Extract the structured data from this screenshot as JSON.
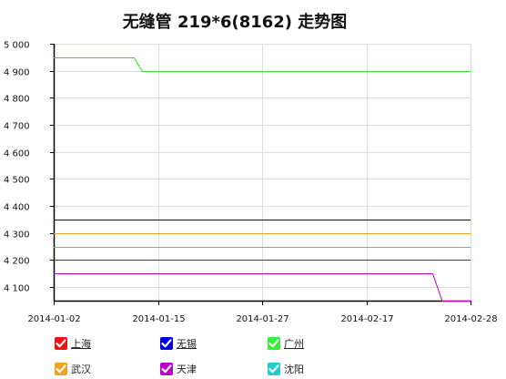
{
  "chart_data": {
    "type": "line",
    "title": "无缝管 219*6(8162) 走势图",
    "x_ticks": [
      "2014-01-02",
      "2014-01-15",
      "2014-01-27",
      "2014-02-17",
      "2014-02-28"
    ],
    "ylim": [
      4050,
      5000
    ],
    "y_ticks": [
      "5 000",
      "4 900",
      "4 800",
      "4 700",
      "4 600",
      "4 500",
      "4 400",
      "4 300",
      "4 200",
      "4 100"
    ],
    "y_tick_values": [
      5000,
      4900,
      4800,
      4700,
      4600,
      4500,
      4400,
      4300,
      4200,
      4100
    ],
    "grid": true,
    "series": [
      {
        "name": "上海",
        "color": "#dd0000",
        "checkbox_color": "#ee1111",
        "points": [
          [
            "2014-01-02",
            4200
          ],
          [
            "2014-02-28",
            4200
          ]
        ]
      },
      {
        "name": "无锡",
        "color": "#0000aa",
        "checkbox_color": "#0000dd",
        "points": [
          [
            "2014-01-02",
            4350
          ],
          [
            "2014-02-28",
            4350
          ]
        ]
      },
      {
        "name": "广州",
        "color": "#33dd33",
        "checkbox_color": "#33ee33",
        "points": [
          [
            "2014-01-02",
            4950
          ],
          [
            "2014-01-12",
            4950
          ],
          [
            "2014-01-13",
            4900
          ],
          [
            "2014-02-28",
            4900
          ]
        ]
      },
      {
        "name": "武汉",
        "color": "#f0a020",
        "checkbox_color": "#f5a020",
        "points": [
          [
            "2014-01-02",
            4300
          ],
          [
            "2014-02-28",
            4300
          ]
        ]
      },
      {
        "name": "天津",
        "color": "#bb00bb",
        "checkbox_color": "#bb00cc",
        "points": [
          [
            "2014-01-02",
            4150
          ],
          [
            "2014-02-24",
            4150
          ],
          [
            "2014-02-25",
            4050
          ],
          [
            "2014-02-28",
            4050
          ]
        ]
      },
      {
        "name": "沈阳",
        "color": "#33cccc",
        "checkbox_color": "#22cccc",
        "points": [
          [
            "2014-01-02",
            4250
          ],
          [
            "2014-02-28",
            4250
          ]
        ]
      }
    ],
    "legend_underlined": [
      "上海",
      "无锡",
      "广州"
    ]
  }
}
